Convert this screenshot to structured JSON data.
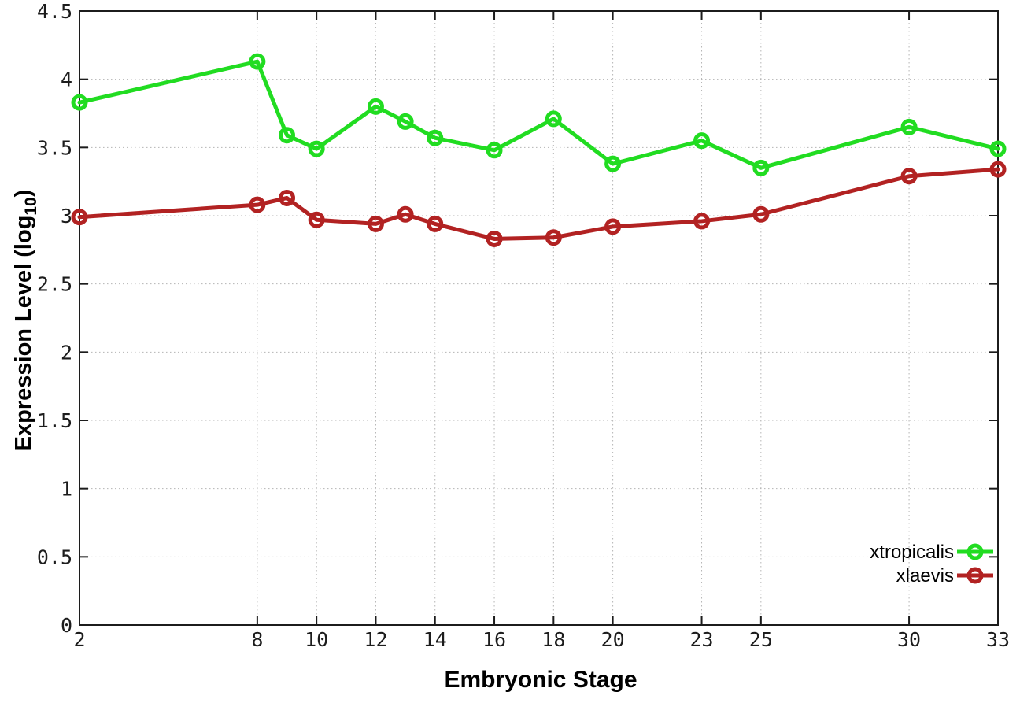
{
  "figure": {
    "background": "#ffffff",
    "border_color": "#1c1c1c",
    "grid_color": "#b4b4b4",
    "tick_label_color": "#1c1c1c"
  },
  "chart_data": {
    "type": "line",
    "title": "",
    "xlabel": "Embryonic Stage",
    "ylabel": "Expression Level (log10)",
    "ylabel_parts": {
      "main": "Expression Level (log",
      "sub": "10",
      "close": ")"
    },
    "xlim": [
      2,
      33
    ],
    "ylim": [
      0,
      4.5
    ],
    "grid": true,
    "x_ticks": [
      2,
      8,
      10,
      12,
      14,
      16,
      18,
      20,
      23,
      25,
      30,
      33
    ],
    "x_tick_labels": [
      "2",
      "8",
      "10",
      "12",
      "14",
      "16",
      "18",
      "20",
      "23",
      "25",
      "30",
      "33"
    ],
    "y_ticks": [
      0,
      0.5,
      1,
      1.5,
      2,
      2.5,
      3,
      3.5,
      4,
      4.5
    ],
    "y_tick_labels": [
      "0",
      "0.5",
      "1",
      "1.5",
      "2",
      "2.5",
      "3",
      "3.5",
      "4",
      "4.5"
    ],
    "x": [
      2,
      8,
      9,
      10,
      12,
      13,
      14,
      16,
      18,
      20,
      23,
      25,
      30,
      33
    ],
    "series": [
      {
        "name": "xtropicalis",
        "color": "#21dc21",
        "marker": "open-circle",
        "values": [
          3.83,
          4.13,
          3.59,
          3.49,
          3.8,
          3.69,
          3.57,
          3.48,
          3.71,
          3.38,
          3.55,
          3.35,
          3.65,
          3.49
        ]
      },
      {
        "name": "xlaevis",
        "color": "#b22222",
        "marker": "open-circle",
        "values": [
          2.99,
          3.08,
          3.13,
          2.97,
          2.94,
          3.01,
          2.94,
          2.83,
          2.84,
          2.92,
          2.96,
          3.01,
          3.29,
          3.34
        ]
      }
    ],
    "legend": {
      "position": "inside-right-bottom",
      "entries": [
        "xtropicalis",
        "xlaevis"
      ]
    }
  }
}
